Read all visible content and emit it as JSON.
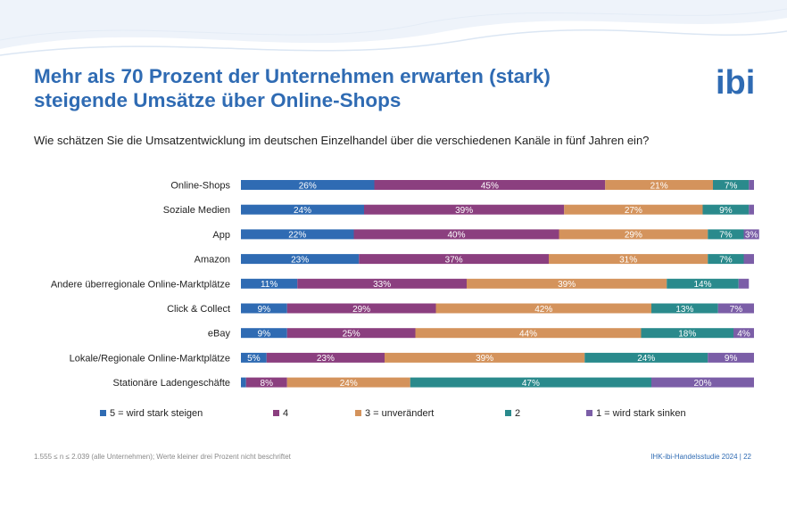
{
  "title_line1": "Mehr als 70 Prozent der Unternehmen erwarten (stark)",
  "title_line2": "steigende Umsätze über Online-Shops",
  "subtitle": "Wie schätzen Sie die Umsatzentwicklung im deutschen Einzelhandel über die verschiedenen Kanäle in fünf Jahren ein?",
  "footer_note": "1.555 ≤ n ≤ 2.039 (alle Unternehmen); Werte kleiner drei Prozent nicht beschriftet",
  "footer_source": "IHK-ibi-Handelsstudie 2024 | 22",
  "logo_text": "ibi",
  "chart_data": {
    "type": "bar",
    "orientation": "horizontal-stacked-100",
    "unit": "%",
    "xlim": [
      0,
      100
    ],
    "label_threshold": 3,
    "categories": [
      "Online-Shops",
      "Soziale Medien",
      "App",
      "Amazon",
      "Andere überregionale Online-Marktplätze",
      "Click & Collect",
      "eBay",
      "Lokale/Regionale Online-Marktplätze",
      "Stationäre Ladengeschäfte"
    ],
    "series": [
      {
        "name": "5 = wird stark steigen",
        "color": "#2f6bb3",
        "values": [
          26,
          24,
          22,
          23,
          11,
          9,
          9,
          5,
          1
        ]
      },
      {
        "name": "4",
        "color": "#8b3f7f",
        "values": [
          45,
          39,
          40,
          37,
          33,
          29,
          25,
          23,
          8
        ]
      },
      {
        "name": "3 = unverändert",
        "color": "#d4935c",
        "values": [
          21,
          27,
          29,
          31,
          39,
          42,
          44,
          39,
          24
        ]
      },
      {
        "name": "2",
        "color": "#2a8a8c",
        "values": [
          7,
          9,
          7,
          7,
          14,
          13,
          18,
          24,
          47
        ]
      },
      {
        "name": "1 = wird stark sinken",
        "color": "#7b5ea7",
        "values": [
          1,
          1,
          3,
          2,
          2,
          7,
          4,
          9,
          20
        ]
      }
    ],
    "legend_position": "bottom"
  }
}
